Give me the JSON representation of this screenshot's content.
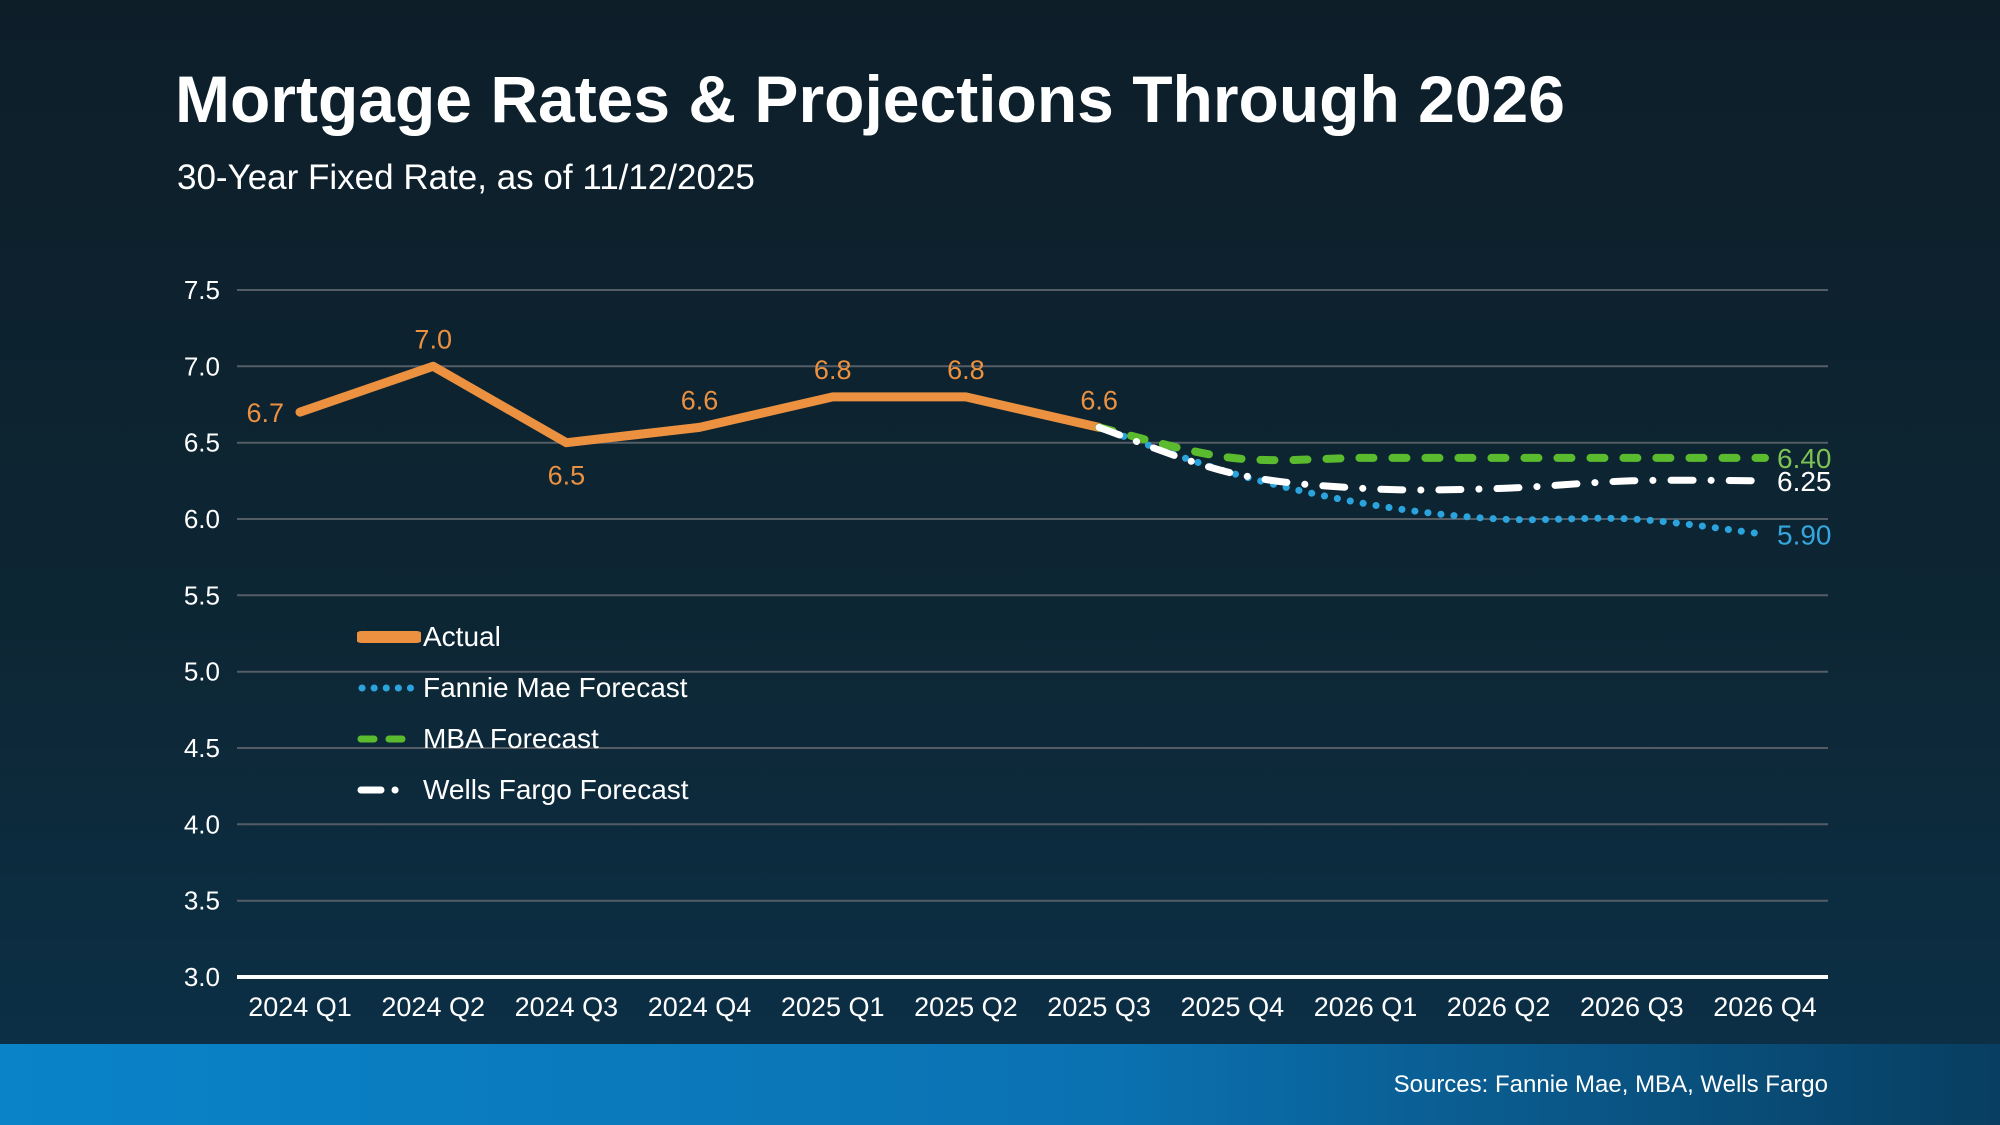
{
  "title": "Mortgage Rates & Projections Through 2026",
  "subtitle": "30-Year Fixed Rate, as of 11/12/2025",
  "footer": {
    "sources_label": "Sources: Fannie Mae, MBA, Wells Fargo"
  },
  "colors": {
    "background_top": "#0d1e29",
    "background_mid": "#0d2634",
    "background_bottom": "#0c3149",
    "gridline": "#545c66",
    "axis_line": "#ffffff",
    "text": "#ffffff",
    "footer_bar_left": "#0a83c9",
    "footer_bar_mid": "#0b72b2",
    "footer_bar_right": "#083e61"
  },
  "chart_data": {
    "type": "line",
    "categories": [
      "2024 Q1",
      "2024 Q2",
      "2024 Q3",
      "2024 Q4",
      "2025 Q1",
      "2025 Q2",
      "2025 Q3",
      "2025 Q4",
      "2026 Q1",
      "2026 Q2",
      "2026 Q3",
      "2026 Q4"
    ],
    "ylim": [
      3.0,
      7.5
    ],
    "yticks": [
      "7.5",
      "7.0",
      "6.5",
      "6.0",
      "5.5",
      "5.0",
      "4.5",
      "4.0",
      "3.5",
      "3.0"
    ],
    "grid": true,
    "legend_position": "middle-left",
    "series": [
      {
        "name": "Actual",
        "style": "solid",
        "color": "#ec9140",
        "x_start_index": 0,
        "values": [
          6.7,
          7.0,
          6.5,
          6.6,
          6.8,
          6.8,
          6.6
        ],
        "point_labels": [
          "6.7",
          "7.0",
          "6.5",
          "6.6",
          "6.8",
          "6.8",
          "6.6"
        ],
        "label_positions": [
          "left",
          "above",
          "below",
          "above",
          "above",
          "above",
          "above"
        ]
      },
      {
        "name": "Fannie Mae Forecast",
        "style": "dotted",
        "color": "#2ba3dd",
        "x_start_index": 6,
        "values": [
          6.6,
          6.3,
          6.1,
          6.0,
          6.0,
          5.9
        ],
        "end_label": "5.90",
        "end_label_color": "#35a7de"
      },
      {
        "name": "MBA Forecast",
        "style": "dashed",
        "color": "#5bbb2e",
        "x_start_index": 6,
        "values": [
          6.6,
          6.4,
          6.4,
          6.4,
          6.4,
          6.4
        ],
        "end_label": "6.40",
        "end_label_color": "#7dc254"
      },
      {
        "name": "Wells Fargo Forecast",
        "style": "dashdot",
        "color": "#ffffff",
        "x_start_index": 6,
        "values": [
          6.6,
          6.3,
          6.2,
          6.2,
          6.25,
          6.25
        ],
        "end_label": "6.25",
        "end_label_color": "#ffffff"
      }
    ]
  }
}
